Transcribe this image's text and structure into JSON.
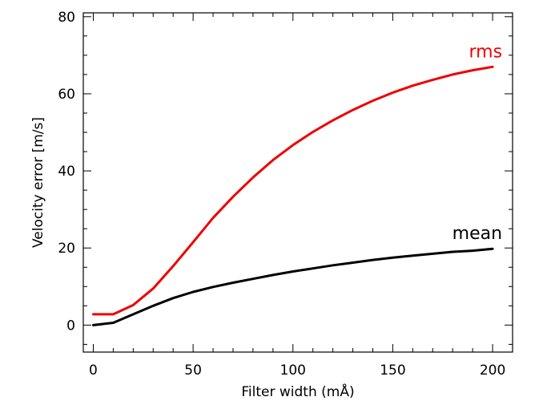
{
  "chart_data": {
    "type": "line",
    "title": "",
    "xlabel": "Filter width (mÅ)",
    "ylabel": "Velocity error [m/s]",
    "xlim": [
      -5,
      210
    ],
    "ylim": [
      -7,
      81
    ],
    "xticks": [
      0,
      50,
      100,
      150,
      200
    ],
    "yticks": [
      0,
      20,
      40,
      60,
      80
    ],
    "xticklabels": [
      "0",
      "50",
      "100",
      "150",
      "200"
    ],
    "yticklabels": [
      "0",
      "20",
      "40",
      "60",
      "80"
    ],
    "grid": false,
    "x": [
      0,
      10,
      20,
      30,
      40,
      50,
      60,
      70,
      80,
      90,
      100,
      110,
      120,
      130,
      140,
      150,
      160,
      170,
      180,
      190,
      200
    ],
    "series": [
      {
        "name": "rms",
        "color": "#ee0000",
        "values": [
          2.8,
          2.8,
          5.2,
          9.5,
          15.3,
          21.5,
          27.8,
          33.3,
          38.3,
          42.8,
          46.7,
          50.1,
          53.1,
          55.8,
          58.2,
          60.3,
          62.1,
          63.6,
          65.0,
          66.1,
          67.0
        ]
      },
      {
        "name": "mean",
        "color": "#000000",
        "values": [
          0.0,
          0.6,
          2.8,
          5.0,
          7.0,
          8.6,
          9.9,
          11.0,
          12.0,
          13.0,
          13.9,
          14.7,
          15.5,
          16.2,
          16.9,
          17.5,
          18.0,
          18.5,
          19.0,
          19.3,
          19.8
        ]
      }
    ]
  }
}
